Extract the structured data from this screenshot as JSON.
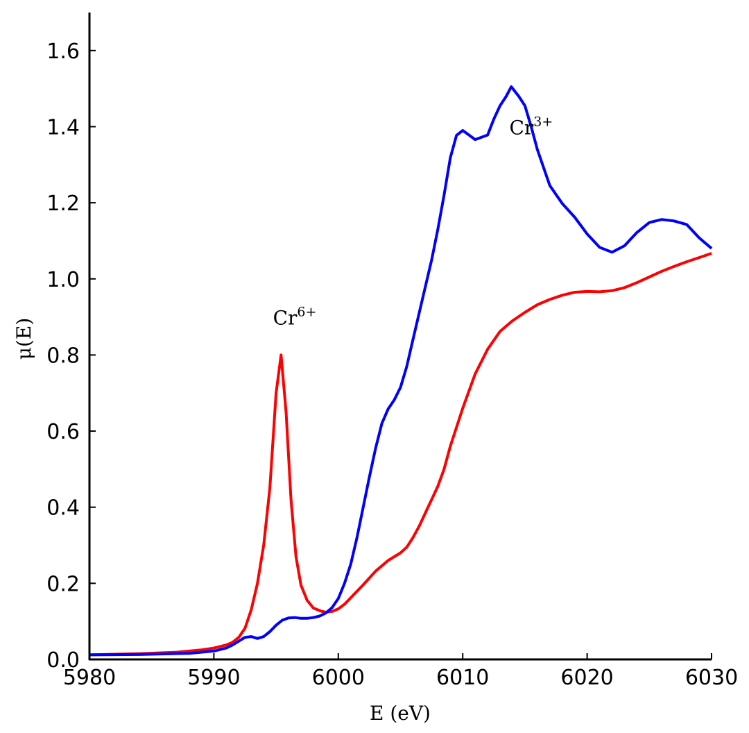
{
  "chart_data": {
    "type": "line",
    "title": "",
    "xlabel": "E (eV)",
    "ylabel": "μ(E)",
    "xlim": [
      5980,
      6030
    ],
    "ylim": [
      0,
      1.7
    ],
    "x_ticks": [
      "5980",
      "5990",
      "6000",
      "6010",
      "6020",
      "6030"
    ],
    "y_ticks": [
      "0.0",
      "0.2",
      "0.4",
      "0.6",
      "0.8",
      "1.0",
      "1.2",
      "1.4",
      "1.6"
    ],
    "grid": false,
    "legend": "none",
    "annotations": [
      {
        "text_base": "Cr",
        "text_sup": "6+",
        "x": 5996.5,
        "y": 0.88
      },
      {
        "text_base": "Cr",
        "text_sup": "3+",
        "x": 6015.5,
        "y": 1.38
      }
    ],
    "series": [
      {
        "color": "#ff0000",
        "points": [
          [
            5980,
            0.012
          ],
          [
            5984,
            0.015
          ],
          [
            5987,
            0.019
          ],
          [
            5989,
            0.025
          ],
          [
            5990,
            0.03
          ],
          [
            5991,
            0.038
          ],
          [
            5991.5,
            0.045
          ],
          [
            5992,
            0.058
          ],
          [
            5992.5,
            0.082
          ],
          [
            5993,
            0.13
          ],
          [
            5993.5,
            0.2
          ],
          [
            5994,
            0.3
          ],
          [
            5994.5,
            0.45
          ],
          [
            5995,
            0.7
          ],
          [
            5995.4,
            0.8
          ],
          [
            5995.8,
            0.65
          ],
          [
            5996.2,
            0.42
          ],
          [
            5996.6,
            0.27
          ],
          [
            5997,
            0.195
          ],
          [
            5997.5,
            0.155
          ],
          [
            5998,
            0.135
          ],
          [
            5998.6,
            0.127
          ],
          [
            5999,
            0.124
          ],
          [
            5999.5,
            0.126
          ],
          [
            6000,
            0.133
          ],
          [
            6000.5,
            0.145
          ],
          [
            6001,
            0.162
          ],
          [
            6002,
            0.196
          ],
          [
            6003,
            0.232
          ],
          [
            6004,
            0.26
          ],
          [
            6005,
            0.28
          ],
          [
            6005.5,
            0.295
          ],
          [
            6006,
            0.32
          ],
          [
            6006.5,
            0.35
          ],
          [
            6007,
            0.385
          ],
          [
            6008,
            0.455
          ],
          [
            6008.5,
            0.5
          ],
          [
            6009,
            0.56
          ],
          [
            6010,
            0.66
          ],
          [
            6011,
            0.75
          ],
          [
            6012,
            0.815
          ],
          [
            6013,
            0.862
          ],
          [
            6014,
            0.89
          ],
          [
            6015,
            0.912
          ],
          [
            6016,
            0.932
          ],
          [
            6017,
            0.946
          ],
          [
            6018,
            0.957
          ],
          [
            6019,
            0.965
          ],
          [
            6020,
            0.967
          ],
          [
            6021,
            0.966
          ],
          [
            6022,
            0.969
          ],
          [
            6023,
            0.977
          ],
          [
            6024,
            0.99
          ],
          [
            6025,
            1.005
          ],
          [
            6026,
            1.02
          ],
          [
            6027,
            1.033
          ],
          [
            6028,
            1.045
          ],
          [
            6029,
            1.056
          ],
          [
            6030,
            1.067
          ]
        ]
      },
      {
        "color": "#0000ff",
        "points": [
          [
            5980,
            0.012
          ],
          [
            5984,
            0.013
          ],
          [
            5988,
            0.016
          ],
          [
            5990,
            0.022
          ],
          [
            5991,
            0.03
          ],
          [
            5991.5,
            0.038
          ],
          [
            5992,
            0.048
          ],
          [
            5992.5,
            0.058
          ],
          [
            5993,
            0.06
          ],
          [
            5993.5,
            0.055
          ],
          [
            5994,
            0.06
          ],
          [
            5994.5,
            0.073
          ],
          [
            5995,
            0.09
          ],
          [
            5995.5,
            0.103
          ],
          [
            5996,
            0.109
          ],
          [
            5996.5,
            0.11
          ],
          [
            5997,
            0.108
          ],
          [
            5997.5,
            0.108
          ],
          [
            5998,
            0.11
          ],
          [
            5998.5,
            0.114
          ],
          [
            5999,
            0.122
          ],
          [
            5999.5,
            0.136
          ],
          [
            6000,
            0.16
          ],
          [
            6000.5,
            0.2
          ],
          [
            6001,
            0.25
          ],
          [
            6001.5,
            0.32
          ],
          [
            6002,
            0.4
          ],
          [
            6002.5,
            0.48
          ],
          [
            6003,
            0.555
          ],
          [
            6003.5,
            0.62
          ],
          [
            6004,
            0.658
          ],
          [
            6004.5,
            0.682
          ],
          [
            6005,
            0.715
          ],
          [
            6005.5,
            0.77
          ],
          [
            6006,
            0.84
          ],
          [
            6006.5,
            0.91
          ],
          [
            6007,
            0.98
          ],
          [
            6007.5,
            1.05
          ],
          [
            6008,
            1.13
          ],
          [
            6008.5,
            1.22
          ],
          [
            6009,
            1.318
          ],
          [
            6009.5,
            1.377
          ],
          [
            6010,
            1.39
          ],
          [
            6010.5,
            1.378
          ],
          [
            6011,
            1.366
          ],
          [
            6012,
            1.378
          ],
          [
            6012.5,
            1.42
          ],
          [
            6013,
            1.455
          ],
          [
            6013.5,
            1.48
          ],
          [
            6013.9,
            1.505
          ],
          [
            6014.5,
            1.48
          ],
          [
            6015,
            1.455
          ],
          [
            6015.5,
            1.4
          ],
          [
            6016,
            1.34
          ],
          [
            6017,
            1.245
          ],
          [
            6018,
            1.198
          ],
          [
            6019,
            1.162
          ],
          [
            6020,
            1.118
          ],
          [
            6021,
            1.083
          ],
          [
            6022,
            1.07
          ],
          [
            6023,
            1.087
          ],
          [
            6024,
            1.122
          ],
          [
            6025,
            1.148
          ],
          [
            6026,
            1.156
          ],
          [
            6027,
            1.152
          ],
          [
            6028,
            1.143
          ],
          [
            6029,
            1.108
          ],
          [
            6030,
            1.08
          ]
        ]
      }
    ]
  }
}
